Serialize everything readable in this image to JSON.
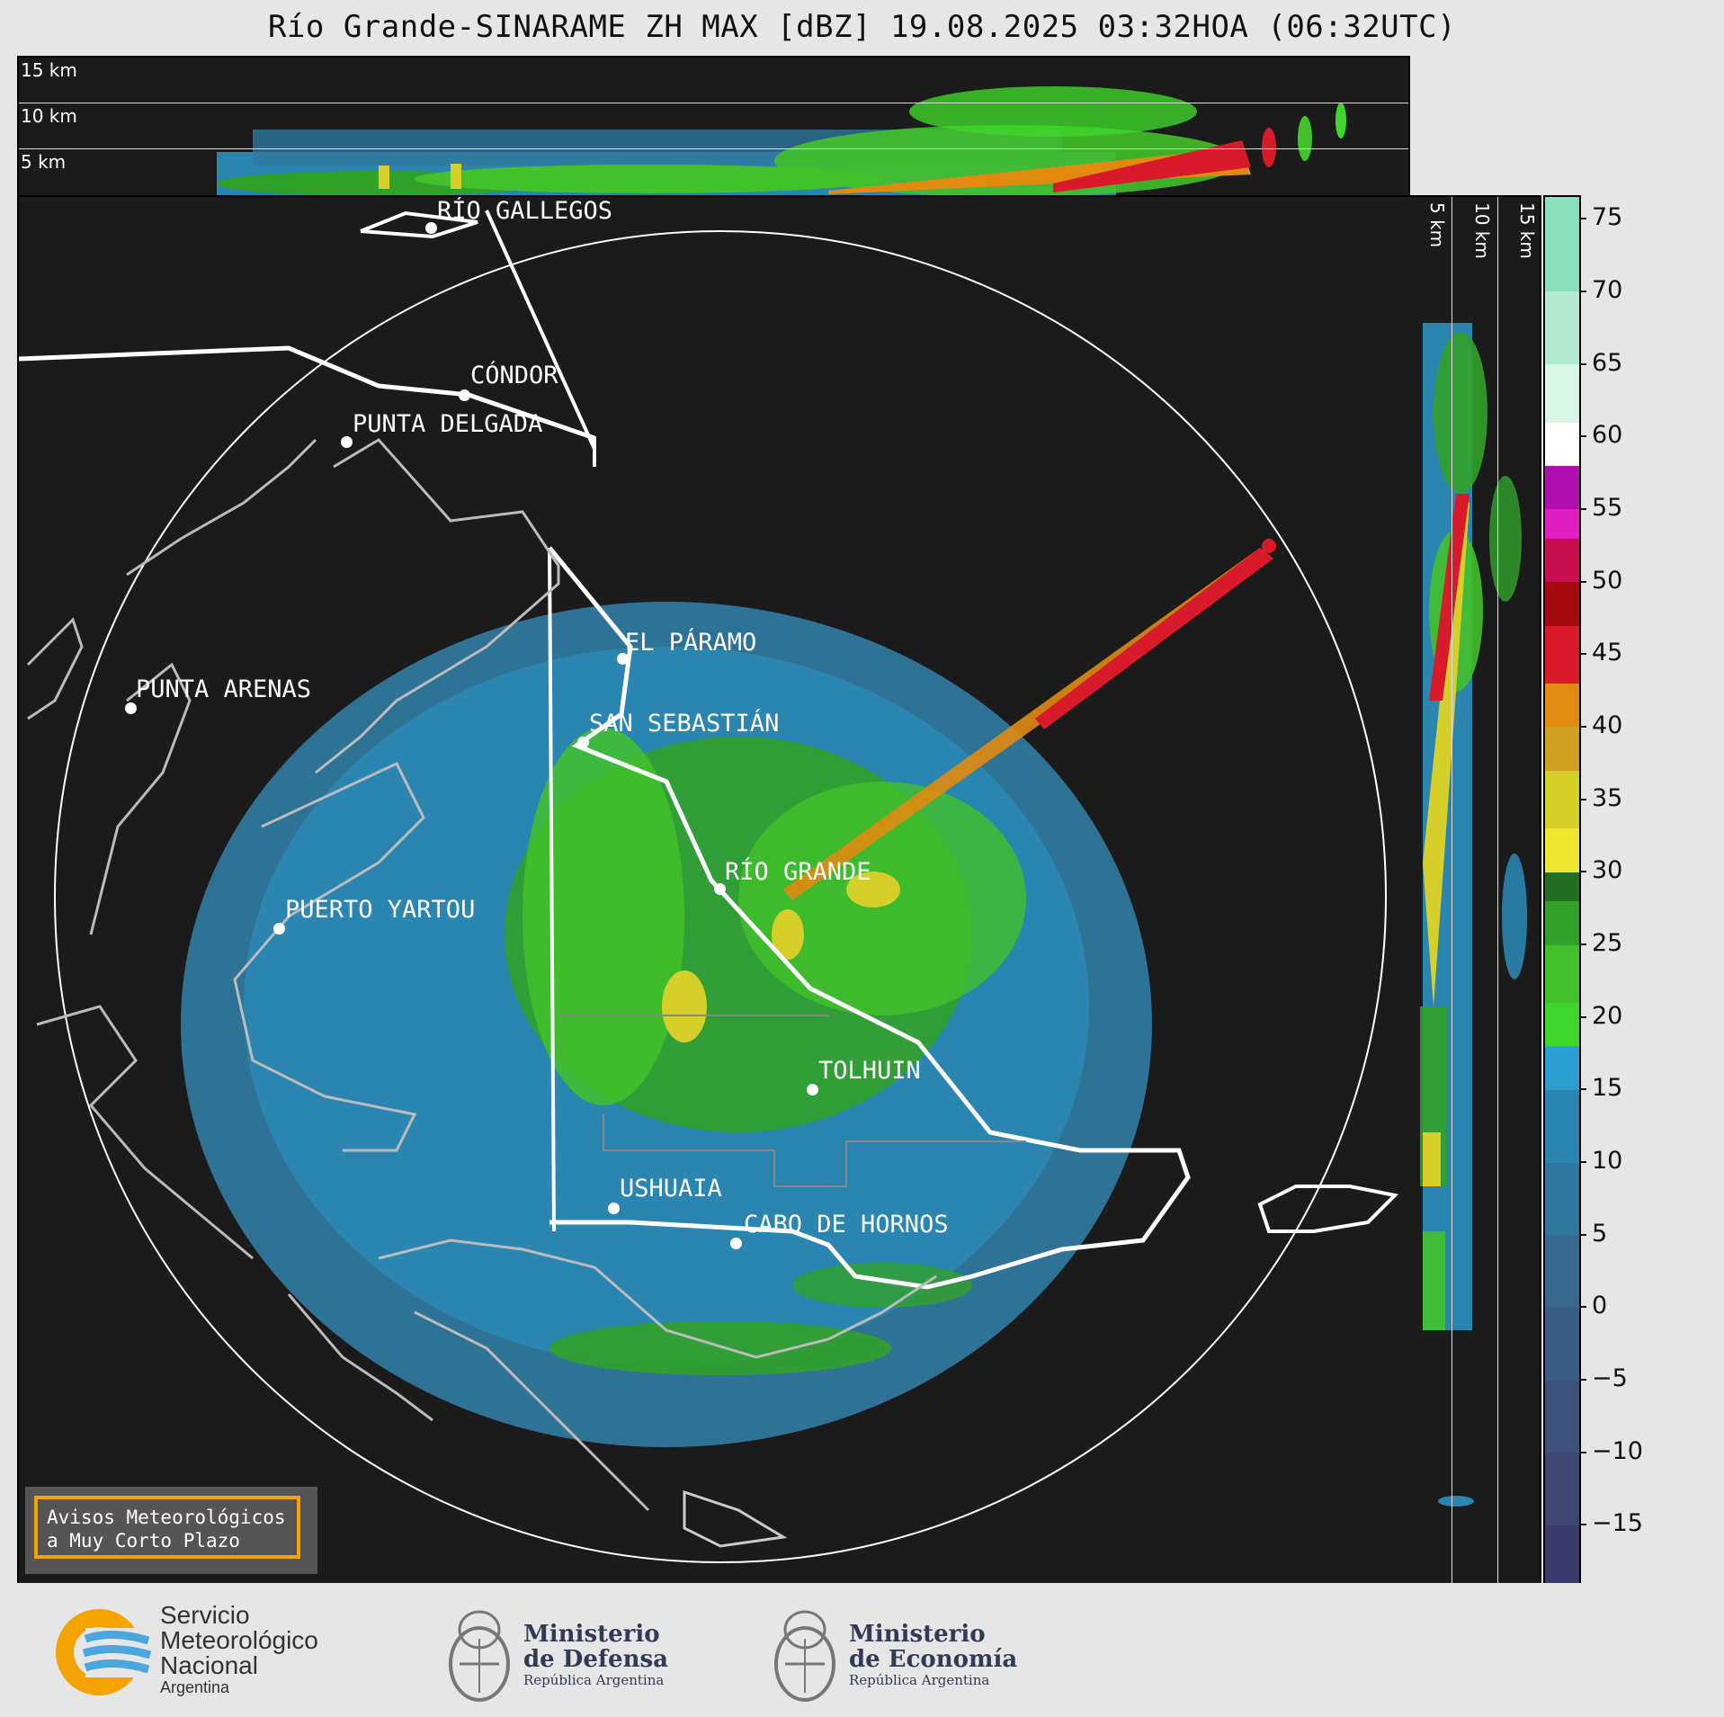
{
  "title": "Río Grande-SINARAME ZH MAX [dBZ] 19.08.2025 03:32HOA (06:32UTC)",
  "altitude_labels": {
    "l15": "15 km",
    "l10": "10 km",
    "l5": "5 km"
  },
  "cities": [
    {
      "key": "rio-gallegos",
      "name": "RÍO GALLEGOS"
    },
    {
      "key": "condor",
      "name": "CÓNDOR"
    },
    {
      "key": "punta-delgada",
      "name": "PUNTA DELGADA"
    },
    {
      "key": "el-paramo",
      "name": "EL PÁRAMO"
    },
    {
      "key": "punta-arenas",
      "name": "PUNTA ARENAS"
    },
    {
      "key": "san-sebastian",
      "name": "SAN SEBASTIÁN"
    },
    {
      "key": "rio-grande",
      "name": "RÍO GRANDE"
    },
    {
      "key": "puerto-yartou",
      "name": "PUERTO YARTOU"
    },
    {
      "key": "tolhuin",
      "name": "TOLHUIN"
    },
    {
      "key": "ushuaia",
      "name": "USHUAIA"
    },
    {
      "key": "cabo-de-hornos",
      "name": "CABO DE HORNOS"
    }
  ],
  "colorbar": {
    "unit": "dBZ",
    "min": -19,
    "max": 76.5,
    "ticks": [
      "75",
      "70",
      "65",
      "60",
      "55",
      "50",
      "45",
      "40",
      "35",
      "30",
      "25",
      "20",
      "15",
      "10",
      "5",
      "0",
      "−5",
      "−10",
      "−15"
    ],
    "tick_values": [
      75,
      70,
      65,
      60,
      55,
      50,
      45,
      40,
      35,
      30,
      25,
      20,
      15,
      10,
      5,
      0,
      -5,
      -10,
      -15
    ],
    "segments": [
      {
        "from": -19,
        "to": -15,
        "color": "#3b3b6e"
      },
      {
        "from": -15,
        "to": -10,
        "color": "#3e4674"
      },
      {
        "from": -10,
        "to": -5,
        "color": "#3d527c"
      },
      {
        "from": -5,
        "to": 0,
        "color": "#3a5d85"
      },
      {
        "from": 0,
        "to": 5,
        "color": "#37698f"
      },
      {
        "from": 5,
        "to": 10,
        "color": "#2f779c"
      },
      {
        "from": 10,
        "to": 15,
        "color": "#2a85b0"
      },
      {
        "from": 15,
        "to": 18,
        "color": "#2a9fd0"
      },
      {
        "from": 18,
        "to": 21,
        "color": "#3fd62b"
      },
      {
        "from": 21,
        "to": 25,
        "color": "#42c12a"
      },
      {
        "from": 25,
        "to": 28,
        "color": "#32a12a"
      },
      {
        "from": 28,
        "to": 30,
        "color": "#256f22"
      },
      {
        "from": 30,
        "to": 33,
        "color": "#f0e830"
      },
      {
        "from": 33,
        "to": 37,
        "color": "#d6cf2a"
      },
      {
        "from": 37,
        "to": 40,
        "color": "#d0a020"
      },
      {
        "from": 40,
        "to": 43,
        "color": "#e08a10"
      },
      {
        "from": 43,
        "to": 47,
        "color": "#d91a2a"
      },
      {
        "from": 47,
        "to": 50,
        "color": "#a50a10"
      },
      {
        "from": 50,
        "to": 53,
        "color": "#c81050"
      },
      {
        "from": 53,
        "to": 55,
        "color": "#e020c0"
      },
      {
        "from": 55,
        "to": 58,
        "color": "#b010b0"
      },
      {
        "from": 58,
        "to": 61,
        "color": "#ffffff"
      },
      {
        "from": 61,
        "to": 65,
        "color": "#d9f5e6"
      },
      {
        "from": 65,
        "to": 70,
        "color": "#b2ebd2"
      },
      {
        "from": 70,
        "to": 76.5,
        "color": "#8adfbd"
      }
    ]
  },
  "avisos": {
    "line1": "Avisos Meteorológicos",
    "line2": "a Muy Corto Plazo"
  },
  "logos": {
    "smn": {
      "line1": "Servicio",
      "line2": "Meteorológico",
      "line3": "Nacional",
      "line4": "Argentina"
    },
    "defensa": {
      "line1": "Ministerio",
      "line2": "de Defensa",
      "line3": "República Argentina"
    },
    "economia": {
      "line1": "Ministerio",
      "line2": "de Economía",
      "line3": "República Argentina"
    }
  },
  "colors": {
    "background": "#1b1b1b",
    "figure": "#e6e6e6",
    "accent_orange": "#f5a300"
  }
}
